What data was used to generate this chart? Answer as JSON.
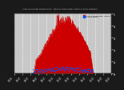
{
  "title": "Solar PV/Inverter Performance - Total PV Panel Power Output & Solar Radiation",
  "background_color": "#1a1a1a",
  "plot_bg_color": "#c8c8c8",
  "grid_color": "#ffffff",
  "n_points": 288,
  "red_color": "#cc0000",
  "blue_color": "#0055ff",
  "red_label": "Total PV Panel Power Output",
  "blue_label": "Solar Radiation",
  "ylabel_right": [
    "5k",
    "4k",
    "3k",
    "2k",
    "1k",
    "0"
  ],
  "xlabel_labels": [
    "00:00",
    "02:00",
    "04:00",
    "06:00",
    "08:00",
    "10:00",
    "12:00",
    "14:00",
    "16:00",
    "18:00",
    "20:00",
    "22:00",
    "00:00"
  ],
  "ylim": [
    0,
    1
  ],
  "xlim": [
    0,
    287
  ]
}
